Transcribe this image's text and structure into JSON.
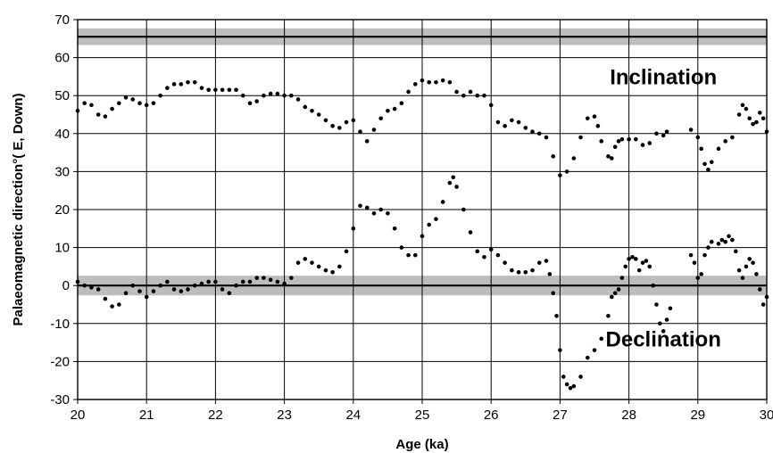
{
  "chart_data": {
    "type": "scatter",
    "xlabel": "Age (ka)",
    "ylabel": "Palaeomagnetic direction°( E, Down)",
    "xlim": [
      20,
      30
    ],
    "ylim": [
      -30,
      70
    ],
    "x_ticks": [
      20,
      21,
      22,
      23,
      24,
      25,
      26,
      27,
      28,
      29,
      30
    ],
    "y_ticks": [
      -30,
      -20,
      -10,
      0,
      10,
      20,
      30,
      40,
      50,
      60,
      70
    ],
    "grid": true,
    "reference_bands": [
      {
        "center": 65.5,
        "half_width": 2.2,
        "line_value": 65.5
      },
      {
        "center": 0,
        "half_width": 2.6,
        "line_value": 0
      }
    ],
    "annotations": [
      {
        "text": "Inclination",
        "x": 28.5,
        "y": 53
      },
      {
        "text": "Declination",
        "x": 28.5,
        "y": -16
      }
    ],
    "series": [
      {
        "name": "Inclination",
        "points": [
          [
            20.0,
            46
          ],
          [
            20.1,
            48
          ],
          [
            20.2,
            47.5
          ],
          [
            20.3,
            45
          ],
          [
            20.4,
            44.5
          ],
          [
            20.5,
            46.5
          ],
          [
            20.6,
            48
          ],
          [
            20.7,
            49.5
          ],
          [
            20.8,
            49
          ],
          [
            20.9,
            48
          ],
          [
            21.0,
            47.5
          ],
          [
            21.1,
            48
          ],
          [
            21.2,
            50
          ],
          [
            21.3,
            52
          ],
          [
            21.4,
            53
          ],
          [
            21.5,
            53
          ],
          [
            21.6,
            53.5
          ],
          [
            21.7,
            53.5
          ],
          [
            21.8,
            52
          ],
          [
            21.9,
            51.5
          ],
          [
            22.0,
            51.5
          ],
          [
            22.1,
            51.5
          ],
          [
            22.2,
            51.5
          ],
          [
            22.3,
            51.5
          ],
          [
            22.4,
            50
          ],
          [
            22.5,
            48
          ],
          [
            22.6,
            48.5
          ],
          [
            22.7,
            50
          ],
          [
            22.8,
            50.5
          ],
          [
            22.9,
            50.5
          ],
          [
            23.0,
            50
          ],
          [
            23.1,
            50
          ],
          [
            23.2,
            49
          ],
          [
            23.3,
            47
          ],
          [
            23.4,
            46
          ],
          [
            23.5,
            45
          ],
          [
            23.6,
            43.5
          ],
          [
            23.7,
            42
          ],
          [
            23.8,
            41.5
          ],
          [
            23.9,
            43
          ],
          [
            24.0,
            43.5
          ],
          [
            24.1,
            40.5
          ],
          [
            24.2,
            38
          ],
          [
            24.3,
            41
          ],
          [
            24.4,
            44
          ],
          [
            24.5,
            46
          ],
          [
            24.6,
            46.5
          ],
          [
            24.7,
            48
          ],
          [
            24.8,
            51
          ],
          [
            24.9,
            53
          ],
          [
            25.0,
            54
          ],
          [
            25.1,
            53.5
          ],
          [
            25.2,
            53.5
          ],
          [
            25.3,
            54
          ],
          [
            25.4,
            53.5
          ],
          [
            25.5,
            51
          ],
          [
            25.6,
            50
          ],
          [
            25.7,
            51
          ],
          [
            25.8,
            50
          ],
          [
            25.9,
            50
          ],
          [
            26.0,
            47.5
          ],
          [
            26.1,
            43
          ],
          [
            26.2,
            42
          ],
          [
            26.3,
            43.5
          ],
          [
            26.4,
            43
          ],
          [
            26.5,
            41.5
          ],
          [
            26.6,
            40.5
          ],
          [
            26.7,
            40
          ],
          [
            26.8,
            39
          ],
          [
            26.9,
            34
          ],
          [
            27.0,
            29
          ],
          [
            27.1,
            30
          ],
          [
            27.2,
            33.5
          ],
          [
            27.3,
            39
          ],
          [
            27.4,
            44
          ],
          [
            27.5,
            44.5
          ],
          [
            27.55,
            42
          ],
          [
            27.6,
            38
          ],
          [
            27.7,
            34
          ],
          [
            27.75,
            33.5
          ],
          [
            27.8,
            36.5
          ],
          [
            27.85,
            38
          ],
          [
            27.9,
            38.5
          ],
          [
            28.0,
            38.5
          ],
          [
            28.1,
            38.5
          ],
          [
            28.2,
            37
          ],
          [
            28.3,
            37.5
          ],
          [
            28.4,
            40
          ],
          [
            28.5,
            39.5
          ],
          [
            28.55,
            40.5
          ],
          [
            28.9,
            41
          ],
          [
            29.0,
            39
          ],
          [
            29.05,
            36
          ],
          [
            29.1,
            32
          ],
          [
            29.15,
            30.5
          ],
          [
            29.2,
            32.5
          ],
          [
            29.3,
            36
          ],
          [
            29.4,
            38
          ],
          [
            29.5,
            39
          ],
          [
            29.6,
            45
          ],
          [
            29.65,
            47.5
          ],
          [
            29.7,
            46.5
          ],
          [
            29.75,
            44
          ],
          [
            29.8,
            42.5
          ],
          [
            29.85,
            43
          ],
          [
            29.9,
            45.5
          ],
          [
            29.95,
            44
          ],
          [
            30.0,
            40.5
          ]
        ]
      },
      {
        "name": "Declination",
        "points": [
          [
            20.0,
            1
          ],
          [
            20.1,
            0
          ],
          [
            20.2,
            -0.5
          ],
          [
            20.3,
            -1
          ],
          [
            20.4,
            -3.5
          ],
          [
            20.5,
            -5.5
          ],
          [
            20.6,
            -5
          ],
          [
            20.7,
            -2
          ],
          [
            20.8,
            0
          ],
          [
            20.9,
            -1.5
          ],
          [
            21.0,
            -3
          ],
          [
            21.1,
            -1.5
          ],
          [
            21.2,
            0
          ],
          [
            21.3,
            1
          ],
          [
            21.4,
            -1
          ],
          [
            21.5,
            -1.5
          ],
          [
            21.6,
            -1
          ],
          [
            21.7,
            0
          ],
          [
            21.8,
            0.5
          ],
          [
            21.9,
            1
          ],
          [
            22.0,
            1
          ],
          [
            22.1,
            -1
          ],
          [
            22.2,
            -2
          ],
          [
            22.3,
            0
          ],
          [
            22.4,
            1
          ],
          [
            22.5,
            1
          ],
          [
            22.6,
            2
          ],
          [
            22.7,
            2
          ],
          [
            22.8,
            1.5
          ],
          [
            22.9,
            1
          ],
          [
            23.0,
            0.5
          ],
          [
            23.1,
            2
          ],
          [
            23.2,
            6
          ],
          [
            23.3,
            7
          ],
          [
            23.4,
            6
          ],
          [
            23.5,
            5
          ],
          [
            23.6,
            4
          ],
          [
            23.7,
            3.5
          ],
          [
            23.8,
            5
          ],
          [
            23.9,
            9
          ],
          [
            24.0,
            15
          ],
          [
            24.1,
            21
          ],
          [
            24.2,
            20.5
          ],
          [
            24.3,
            19
          ],
          [
            24.4,
            20
          ],
          [
            24.5,
            19
          ],
          [
            24.6,
            15
          ],
          [
            24.7,
            10
          ],
          [
            24.8,
            8
          ],
          [
            24.9,
            8
          ],
          [
            25.0,
            13
          ],
          [
            25.1,
            16
          ],
          [
            25.2,
            17.5
          ],
          [
            25.3,
            22
          ],
          [
            25.4,
            27
          ],
          [
            25.45,
            28.5
          ],
          [
            25.5,
            26
          ],
          [
            25.6,
            20
          ],
          [
            25.7,
            14
          ],
          [
            25.8,
            9
          ],
          [
            25.9,
            7.5
          ],
          [
            26.0,
            9.5
          ],
          [
            26.1,
            8
          ],
          [
            26.2,
            6
          ],
          [
            26.3,
            4
          ],
          [
            26.4,
            3.5
          ],
          [
            26.5,
            3.5
          ],
          [
            26.6,
            4
          ],
          [
            26.7,
            6
          ],
          [
            26.8,
            6.5
          ],
          [
            26.85,
            3
          ],
          [
            26.9,
            -2
          ],
          [
            26.95,
            -8
          ],
          [
            27.0,
            -17
          ],
          [
            27.05,
            -24
          ],
          [
            27.1,
            -26
          ],
          [
            27.15,
            -27
          ],
          [
            27.2,
            -26.5
          ],
          [
            27.3,
            -24
          ],
          [
            27.4,
            -19
          ],
          [
            27.5,
            -17
          ],
          [
            27.6,
            -14
          ],
          [
            27.7,
            -8
          ],
          [
            27.75,
            -3
          ],
          [
            27.8,
            -2
          ],
          [
            27.85,
            -1
          ],
          [
            27.9,
            2
          ],
          [
            27.95,
            5
          ],
          [
            28.0,
            7
          ],
          [
            28.05,
            7.5
          ],
          [
            28.1,
            7
          ],
          [
            28.15,
            4
          ],
          [
            28.2,
            6
          ],
          [
            28.25,
            6.5
          ],
          [
            28.3,
            5
          ],
          [
            28.35,
            0
          ],
          [
            28.4,
            -5
          ],
          [
            28.45,
            -10
          ],
          [
            28.5,
            -12
          ],
          [
            28.55,
            -9
          ],
          [
            28.6,
            -6
          ],
          [
            28.9,
            8
          ],
          [
            28.95,
            6
          ],
          [
            29.0,
            2
          ],
          [
            29.05,
            3
          ],
          [
            29.1,
            8
          ],
          [
            29.15,
            10
          ],
          [
            29.2,
            11.5
          ],
          [
            29.3,
            11
          ],
          [
            29.35,
            12
          ],
          [
            29.4,
            11.5
          ],
          [
            29.45,
            13
          ],
          [
            29.5,
            12
          ],
          [
            29.55,
            9
          ],
          [
            29.6,
            4
          ],
          [
            29.65,
            2
          ],
          [
            29.7,
            5
          ],
          [
            29.75,
            7
          ],
          [
            29.8,
            6
          ],
          [
            29.85,
            3
          ],
          [
            29.9,
            -1
          ],
          [
            29.95,
            -5
          ],
          [
            30.0,
            -3
          ]
        ]
      }
    ]
  }
}
